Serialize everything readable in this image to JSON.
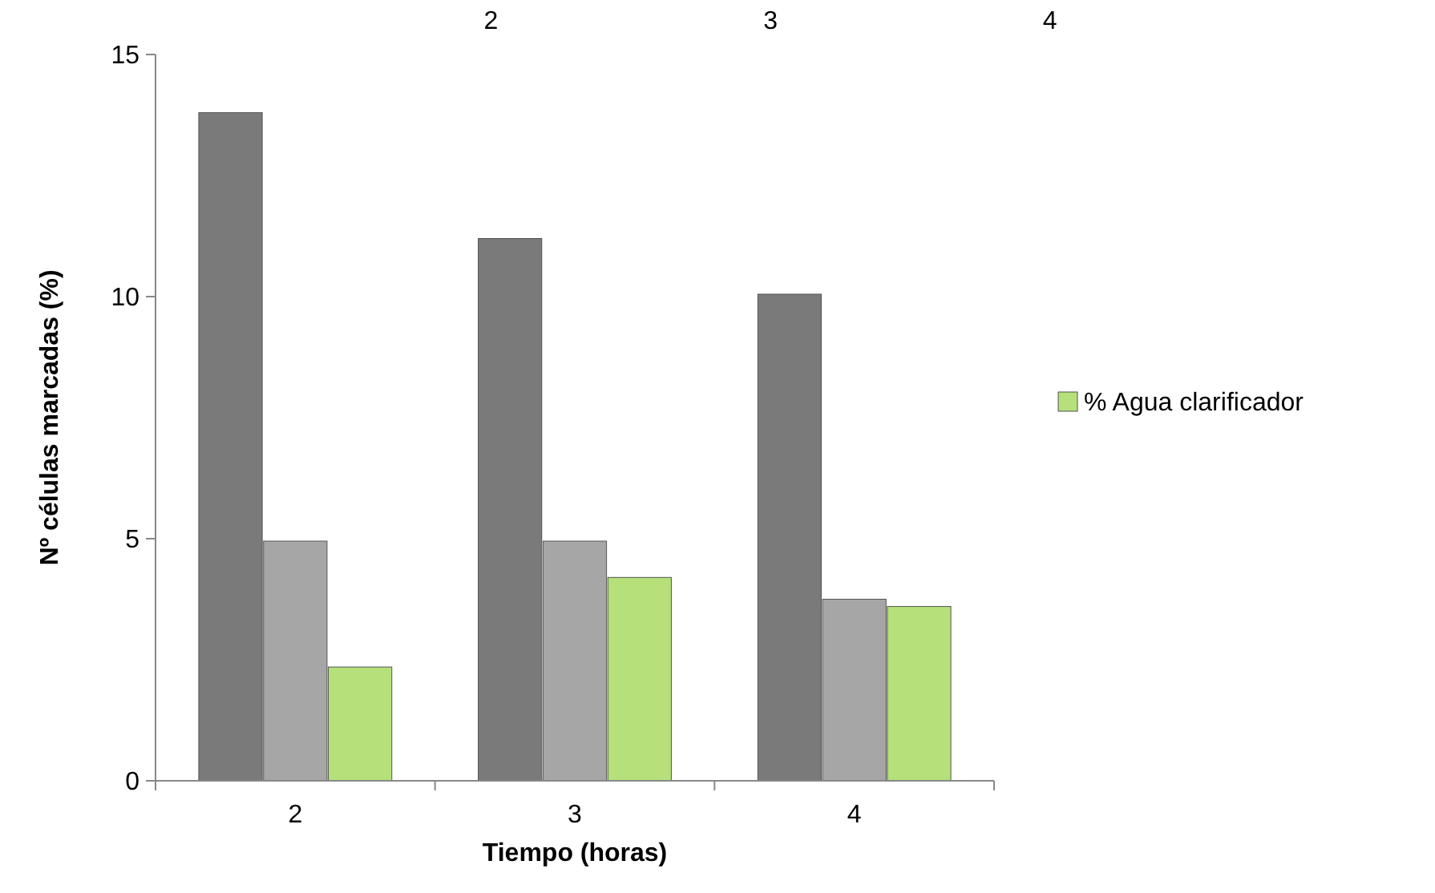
{
  "chart_data": {
    "type": "bar",
    "xlabel": "Tiempo (horas)",
    "ylabel": "Nº células marcadas (%)",
    "categories": [
      "2",
      "3",
      "4"
    ],
    "series": [
      {
        "color": "#7a7a7a",
        "values": [
          13.8,
          11.2,
          10.05
        ]
      },
      {
        "color": "#a6a6a6",
        "values": [
          4.95,
          4.95,
          3.75
        ]
      },
      {
        "name": "% Agua clarificador",
        "color": "#b5e07a",
        "values": [
          2.35,
          4.2,
          3.6
        ]
      }
    ],
    "ylim": [
      0,
      15
    ],
    "yticks": [
      0,
      5,
      10,
      15
    ],
    "grid": false,
    "legend": "right",
    "annotations": [
      "2",
      "3",
      "4"
    ]
  }
}
